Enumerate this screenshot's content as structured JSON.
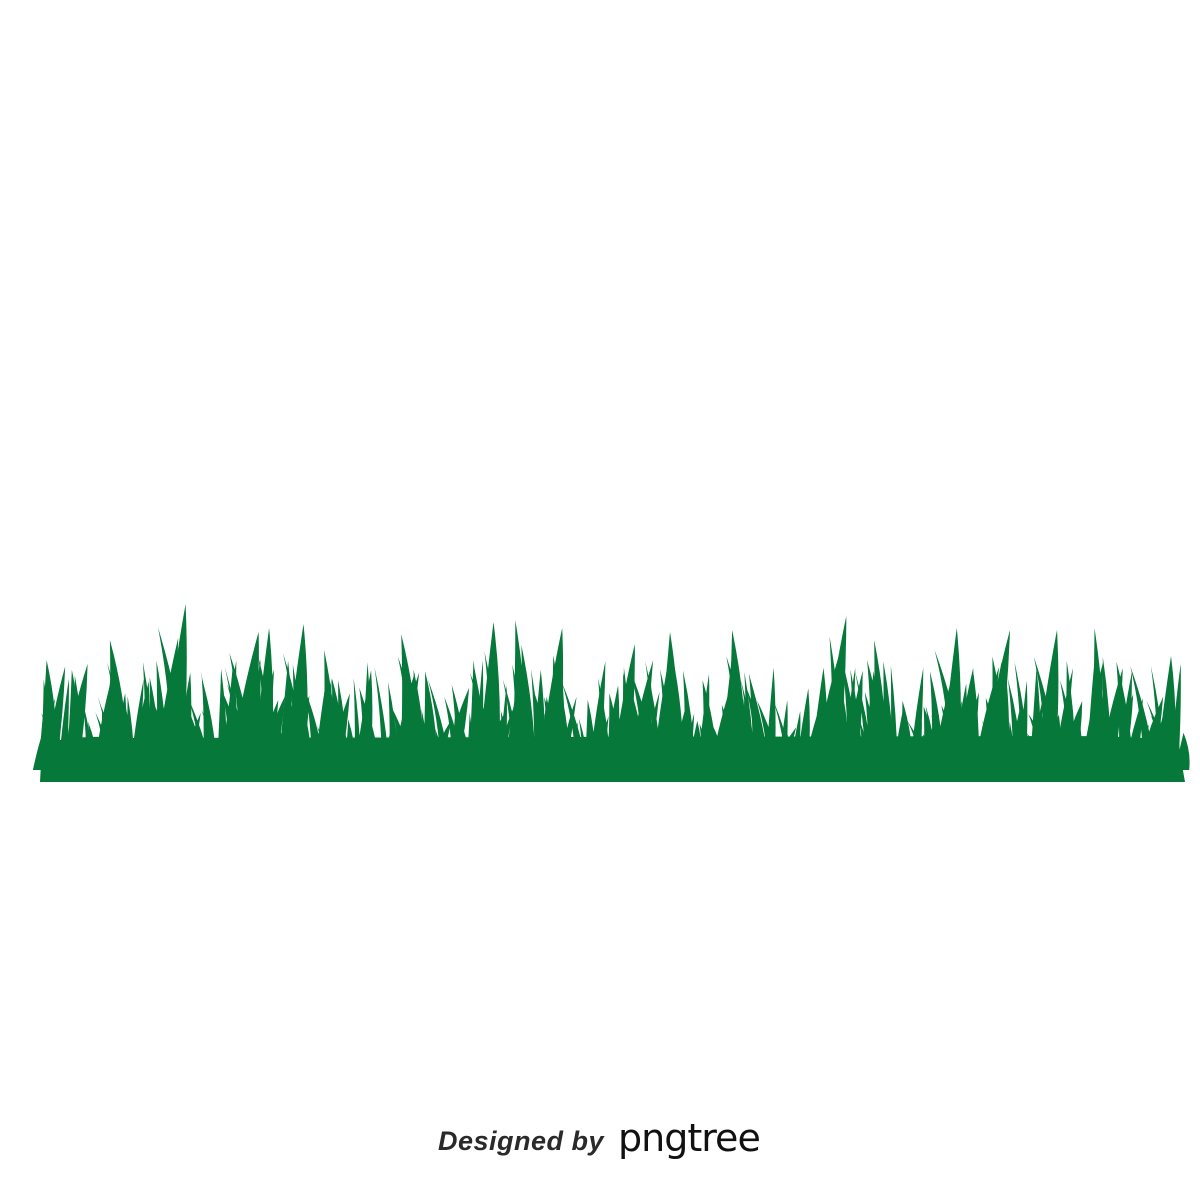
{
  "image": {
    "subject": "grass-strip-illustration",
    "background_color": "#ffffff",
    "grass_color": "#06783a"
  },
  "watermark": {
    "prefix": "Designed by",
    "brand": "pngtree",
    "text_color": "#2a2a2a"
  }
}
